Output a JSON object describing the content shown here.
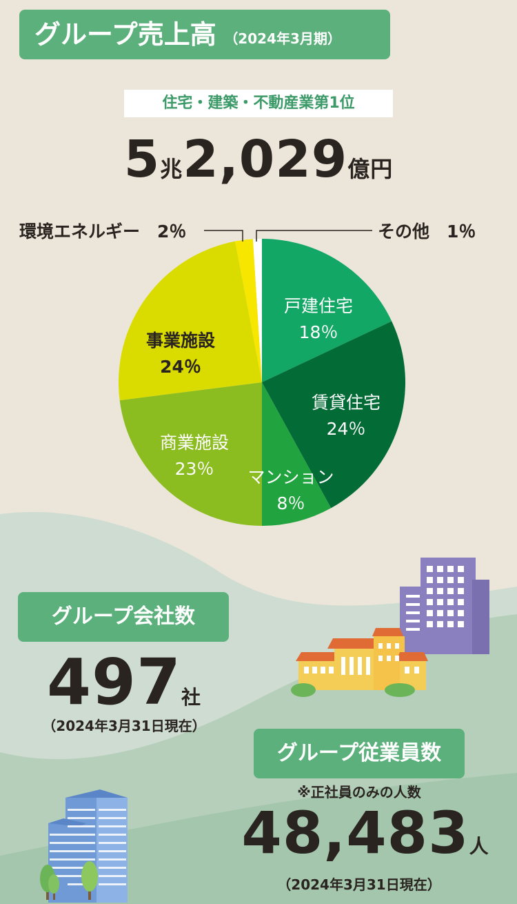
{
  "header": {
    "title": "グループ売上高",
    "period": "（2024年3月期）"
  },
  "rank_badge": "住宅・建築・不動産業第1位",
  "sales": {
    "value_cho": "5",
    "unit_cho": "兆",
    "value_oku": "2,029",
    "unit_oku": "億円"
  },
  "chart_data": {
    "type": "pie",
    "title": "",
    "slices": [
      {
        "label": "戸建住宅",
        "value": 18,
        "value_label": "18％",
        "color": "#12a765"
      },
      {
        "label": "賃貸住宅",
        "value": 24,
        "value_label": "24％",
        "color": "#036c36"
      },
      {
        "label": "マンション",
        "value": 8,
        "value_label": "8％",
        "color": "#21a43f"
      },
      {
        "label": "商業施設",
        "value": 23,
        "value_label": "23％",
        "color": "#8cbd20"
      },
      {
        "label": "事業施設",
        "value": 24,
        "value_label": "24％",
        "color": "#dadc00"
      },
      {
        "label": "環境エネルギー",
        "value": 2,
        "value_label": "2％",
        "color": "#f6e600"
      },
      {
        "label": "その他",
        "value": 1,
        "value_label": "1％",
        "color": "#ffffff"
      }
    ],
    "callouts": {
      "env": "環境エネルギー　2％",
      "other": "その他　1％"
    }
  },
  "companies": {
    "label": "グループ会社数",
    "value": "497",
    "unit": "社",
    "note": "（2024年3月31日現在）"
  },
  "employees": {
    "label": "グループ従業員数",
    "sub": "※正社員のみの人数",
    "value": "48,483",
    "unit": "人",
    "note": "（2024年3月31日現在）"
  },
  "colors": {
    "background": "#ece6da",
    "accent_green": "#5bb07b",
    "hill_light": "#cfdcd1",
    "hill_mid": "#b5cfbb",
    "hill_dark": "#9dc2a5"
  }
}
